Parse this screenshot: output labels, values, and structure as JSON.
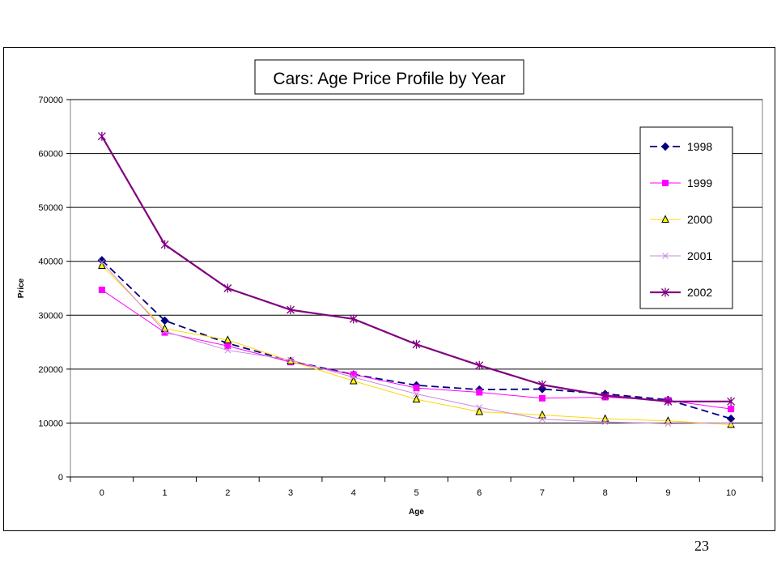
{
  "page": {
    "number": "23"
  },
  "chart_data": {
    "type": "line",
    "title": "Cars: Age Price Profile by Year",
    "xlabel": "Age",
    "ylabel": "Price",
    "categories": [
      "0",
      "1",
      "2",
      "3",
      "4",
      "5",
      "6",
      "7",
      "8",
      "9",
      "10"
    ],
    "y_ticks": [
      "0",
      "10000",
      "20000",
      "30000",
      "40000",
      "50000",
      "60000",
      "70000"
    ],
    "ylim": [
      0,
      70000
    ],
    "grid": "horizontal",
    "legend": "right",
    "series": [
      {
        "name": "1998",
        "color": "#000080",
        "dash": "dashed",
        "marker": "diamond",
        "values": [
          40200,
          29000,
          24800,
          21500,
          19000,
          17000,
          16200,
          16300,
          15400,
          14300,
          10800
        ]
      },
      {
        "name": "1999",
        "color": "#FF00FF",
        "dash": "solid",
        "marker": "square",
        "values": [
          34700,
          26800,
          24300,
          21300,
          19000,
          16500,
          15700,
          14600,
          14800,
          14200,
          12600
        ]
      },
      {
        "name": "2000",
        "color": "#FFD700",
        "dash": "solid",
        "marker": "triangle",
        "values": [
          39200,
          27500,
          25400,
          21500,
          17800,
          14400,
          12100,
          11500,
          10800,
          10400,
          9700
        ]
      },
      {
        "name": "2001",
        "color": "#CC88DD",
        "dash": "solid",
        "marker": "x",
        "values": [
          39800,
          27000,
          23500,
          21700,
          18500,
          15400,
          12900,
          10700,
          10200,
          9900,
          10000
        ]
      },
      {
        "name": "2002",
        "color": "#800080",
        "dash": "solid",
        "marker": "star",
        "values": [
          63200,
          43100,
          35000,
          31000,
          29300,
          24600,
          20700,
          17100,
          15100,
          14000,
          14000
        ]
      }
    ]
  }
}
